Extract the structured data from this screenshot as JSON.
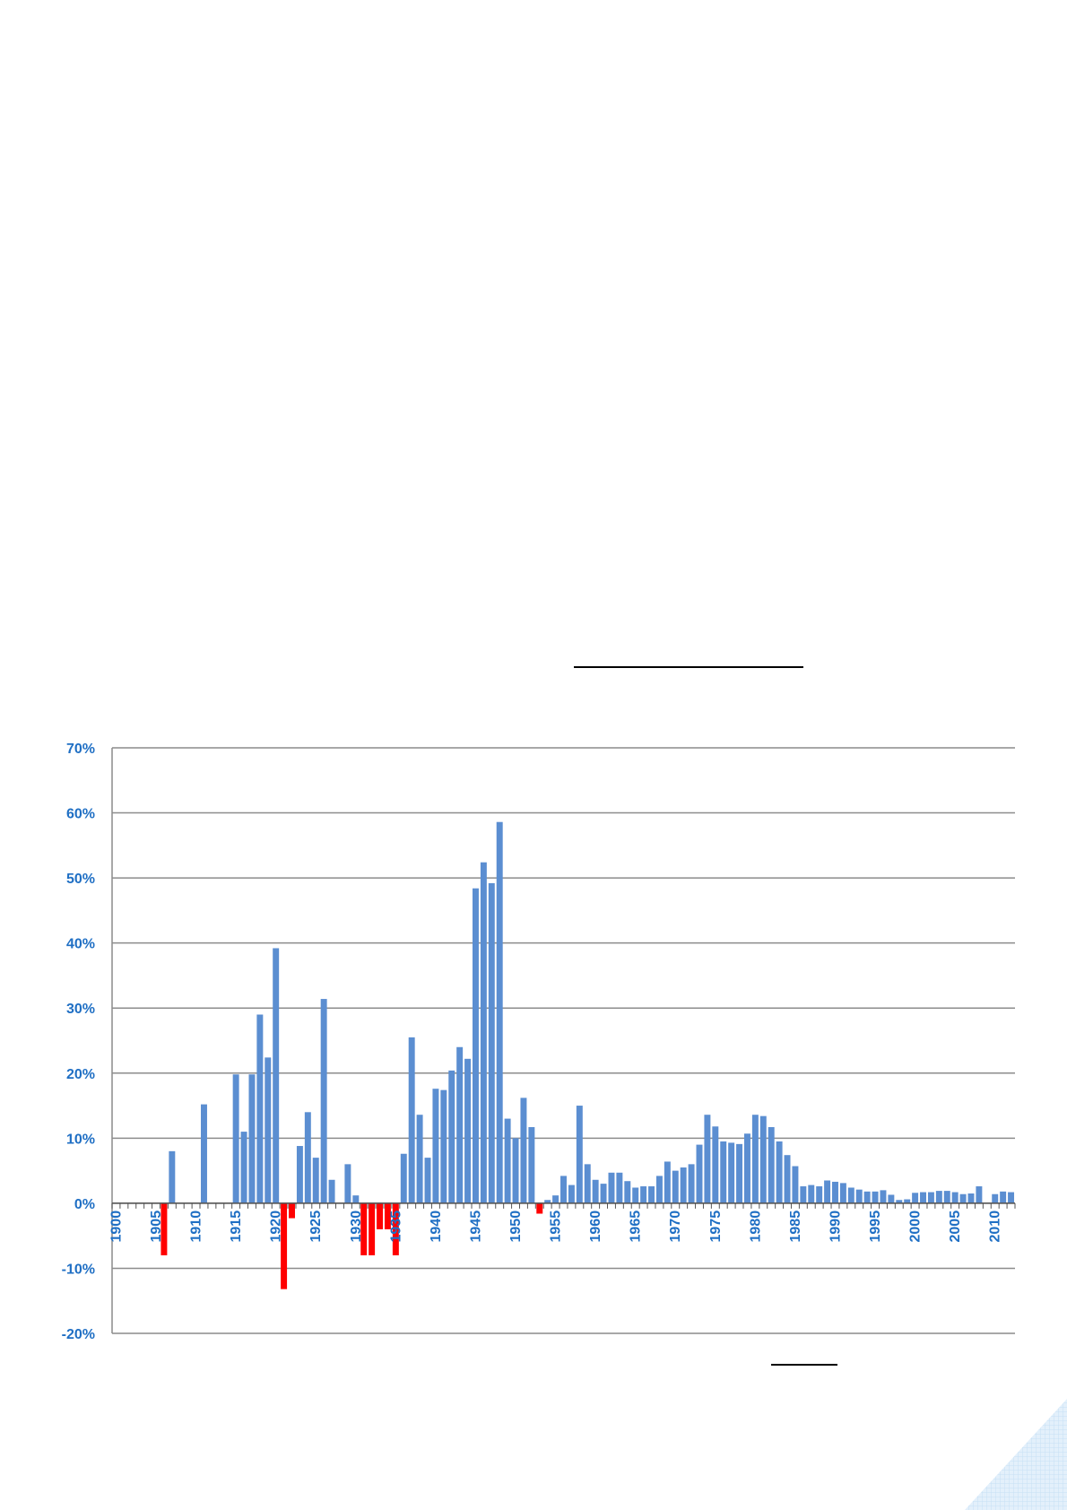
{
  "chart_data": {
    "type": "bar",
    "ylabel": "",
    "xlabel": "",
    "ylim": [
      -20,
      70
    ],
    "yticks": [
      "70%",
      "60%",
      "50%",
      "40%",
      "30%",
      "20%",
      "10%",
      "0%",
      "-10%",
      "-20%"
    ],
    "grid": true,
    "colors": {
      "positive": "#5B8ED1",
      "negative": "#FF0000",
      "tick_labels": "#1F6FC4"
    },
    "years": [
      1900,
      1901,
      1902,
      1903,
      1904,
      1905,
      1906,
      1907,
      1908,
      1909,
      1910,
      1911,
      1912,
      1913,
      1914,
      1915,
      1916,
      1917,
      1918,
      1919,
      1920,
      1921,
      1922,
      1923,
      1924,
      1925,
      1926,
      1927,
      1928,
      1929,
      1930,
      1931,
      1932,
      1933,
      1934,
      1935,
      1936,
      1937,
      1938,
      1939,
      1940,
      1941,
      1942,
      1943,
      1944,
      1945,
      1946,
      1947,
      1948,
      1949,
      1950,
      1951,
      1952,
      1953,
      1954,
      1955,
      1956,
      1957,
      1958,
      1959,
      1960,
      1961,
      1962,
      1963,
      1964,
      1965,
      1966,
      1967,
      1968,
      1969,
      1970,
      1971,
      1972,
      1973,
      1974,
      1975,
      1976,
      1977,
      1978,
      1979,
      1980,
      1981,
      1982,
      1983,
      1984,
      1985,
      1986,
      1987,
      1988,
      1989,
      1990,
      1991,
      1992,
      1993,
      1994,
      1995,
      1996,
      1997,
      1998,
      1999,
      2000,
      2001,
      2002,
      2003,
      2004,
      2005,
      2006,
      2007,
      2008,
      2009,
      2010,
      2011,
      2012
    ],
    "values": [
      0,
      0,
      0,
      0,
      0,
      0,
      -8,
      8,
      0,
      0,
      0,
      15.2,
      0,
      0,
      0,
      19.8,
      11,
      19.8,
      29,
      22.4,
      39.2,
      -13.2,
      -2.3,
      8.8,
      14,
      7,
      31.4,
      3.6,
      0,
      6,
      1.2,
      -8,
      -8,
      -4,
      -4,
      -8,
      7.6,
      25.5,
      13.6,
      7,
      17.6,
      17.4,
      20.4,
      24,
      22.2,
      48.4,
      52.4,
      49.2,
      58.6,
      13,
      10,
      16.2,
      11.7,
      -1.6,
      0.5,
      1.2,
      4.2,
      2.8,
      15,
      6,
      3.6,
      3,
      4.7,
      4.7,
      3.4,
      2.4,
      2.6,
      2.6,
      4.2,
      6.4,
      5,
      5.5,
      6,
      9,
      13.6,
      11.8,
      9.5,
      9.3,
      9.1,
      10.7,
      13.6,
      13.4,
      11.7,
      9.5,
      7.4,
      5.7,
      2.6,
      2.8,
      2.6,
      3.5,
      3.3,
      3.1,
      2.4,
      2.1,
      1.8,
      1.8,
      2,
      1.3,
      0.5,
      0.6,
      1.6,
      1.7,
      1.7,
      1.9,
      1.9,
      1.7,
      1.4,
      1.5,
      2.6,
      0,
      1.4,
      1.8,
      1.7
    ],
    "x_tick_labels": [
      "1900",
      "1905",
      "1910",
      "1915",
      "1920",
      "1925",
      "1930",
      "1935",
      "1940",
      "1945",
      "1950",
      "1955",
      "1960",
      "1965",
      "1970",
      "1975",
      "1980",
      "1985",
      "1990",
      "1995",
      "2000",
      "2005",
      "2010"
    ]
  }
}
